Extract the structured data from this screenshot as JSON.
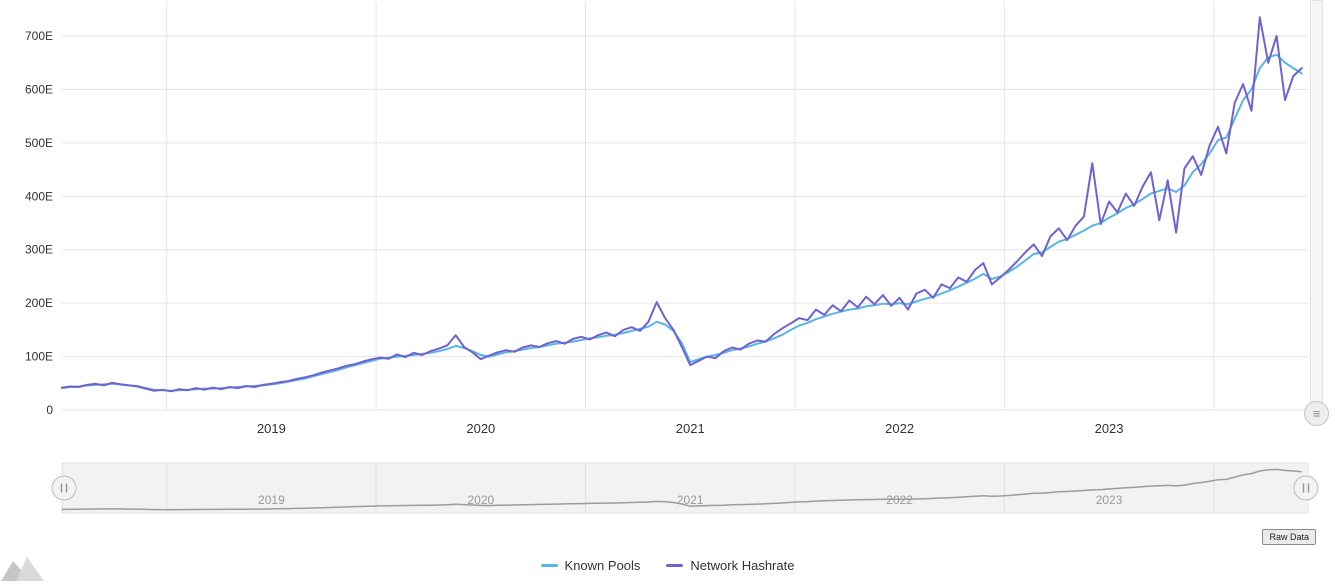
{
  "buttons": {
    "raw_data": "Raw Data"
  },
  "icons": {
    "navigator_handle_glyph": "||",
    "scrollbar_button_glyph": "≡",
    "logo": "mountains-icon"
  },
  "colors": {
    "grid": "#e6e6e6",
    "axis_label": "#333333",
    "navigator_label": "#999999",
    "navigator_bg": "#f2f2f2",
    "navigator_border": "#e0e0e0",
    "navigator_line": "#9c9c9c",
    "known_pools": "#57b6e6",
    "network_hashrate": "#7062cf"
  },
  "chart_data": {
    "type": "line",
    "x_unit": "year",
    "y_unit_suffix": "E",
    "x_start": 2018.5,
    "x_step": 0.04,
    "x_axis": {
      "range": [
        2018.5,
        2024.45
      ],
      "year_gridlines": [
        2019,
        2020,
        2021,
        2022,
        2023,
        2024
      ],
      "tick_labels": [
        {
          "t": 2019.5,
          "label": "2019"
        },
        {
          "t": 2020.5,
          "label": "2020"
        },
        {
          "t": 2021.5,
          "label": "2021"
        },
        {
          "t": 2022.5,
          "label": "2022"
        },
        {
          "t": 2023.5,
          "label": "2023"
        }
      ]
    },
    "y_axis": {
      "range": [
        0,
        750
      ],
      "ticks": [
        {
          "v": 0,
          "label": "0"
        },
        {
          "v": 100,
          "label": "100E"
        },
        {
          "v": 200,
          "label": "200E"
        },
        {
          "v": 300,
          "label": "300E"
        },
        {
          "v": 400,
          "label": "400E"
        },
        {
          "v": 500,
          "label": "500E"
        },
        {
          "v": 600,
          "label": "600E"
        },
        {
          "v": 700,
          "label": "700E"
        }
      ]
    },
    "grid": true,
    "legend_position": "bottom",
    "series": [
      {
        "name": "Known Pools",
        "color": "#57b6e6",
        "values": [
          41,
          43,
          44,
          46,
          47,
          48,
          49,
          48,
          46,
          45,
          41,
          38,
          37,
          36,
          37,
          38,
          39,
          40,
          40,
          41,
          42,
          43,
          44,
          45,
          46,
          48,
          50,
          53,
          56,
          59,
          63,
          67,
          71,
          75,
          80,
          84,
          88,
          92,
          96,
          98,
          100,
          101,
          103,
          105,
          107,
          110,
          114,
          120,
          116,
          110,
          103,
          100,
          104,
          108,
          110,
          113,
          116,
          118,
          121,
          124,
          126,
          128,
          131,
          134,
          136,
          139,
          141,
          144,
          148,
          152,
          156,
          165,
          160,
          148,
          125,
          90,
          95,
          100,
          103,
          107,
          112,
          115,
          119,
          124,
          128,
          134,
          141,
          150,
          158,
          163,
          170,
          175,
          180,
          184,
          188,
          190,
          194,
          196,
          199,
          198,
          200,
          198,
          203,
          208,
          212,
          218,
          224,
          231,
          238,
          246,
          255,
          245,
          250,
          258,
          268,
          280,
          292,
          295,
          305,
          315,
          320,
          328,
          336,
          345,
          350,
          360,
          368,
          378,
          385,
          395,
          405,
          410,
          415,
          408,
          420,
          445,
          460,
          480,
          505,
          510,
          545,
          580,
          600,
          640,
          660,
          665,
          650,
          640,
          630
        ]
      },
      {
        "name": "Network Hashrate",
        "color": "#7062cf",
        "values": [
          42,
          44,
          43,
          47,
          49,
          46,
          51,
          48,
          46,
          44,
          40,
          36,
          38,
          35,
          39,
          37,
          41,
          38,
          42,
          39,
          43,
          41,
          45,
          43,
          47,
          49,
          52,
          54,
          58,
          61,
          65,
          70,
          74,
          78,
          83,
          86,
          91,
          95,
          98,
          96,
          104,
          99,
          107,
          103,
          110,
          115,
          121,
          140,
          118,
          108,
          95,
          102,
          108,
          112,
          109,
          117,
          121,
          118,
          125,
          129,
          124,
          133,
          137,
          132,
          140,
          145,
          138,
          150,
          155,
          148,
          165,
          202,
          172,
          150,
          118,
          84,
          92,
          100,
          97,
          110,
          117,
          113,
          124,
          130,
          128,
          142,
          153,
          162,
          172,
          168,
          188,
          178,
          196,
          185,
          205,
          192,
          212,
          198,
          215,
          195,
          210,
          188,
          218,
          225,
          210,
          235,
          228,
          248,
          240,
          262,
          275,
          235,
          248,
          262,
          278,
          295,
          310,
          288,
          325,
          340,
          318,
          345,
          362,
          462,
          348,
          390,
          370,
          405,
          382,
          418,
          445,
          355,
          430,
          332,
          452,
          475,
          440,
          495,
          530,
          480,
          575,
          610,
          560,
          735,
          650,
          700,
          580,
          625,
          640
        ]
      }
    ],
    "navigator": {
      "source_series": "Known Pools",
      "line_color": "#9c9c9c",
      "tick_labels": [
        "2019",
        "2020",
        "2021",
        "2022",
        "2023"
      ]
    }
  },
  "legend": {
    "items": [
      {
        "label": "Known Pools"
      },
      {
        "label": "Network Hashrate"
      }
    ]
  }
}
